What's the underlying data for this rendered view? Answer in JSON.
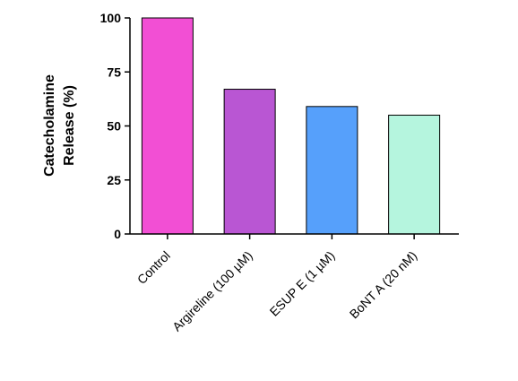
{
  "chart_data": {
    "type": "bar",
    "title": "",
    "xlabel": "",
    "ylabel": [
      "Catecholamine",
      "Release (%)"
    ],
    "ylim": [
      0,
      100
    ],
    "yticks": [
      0,
      25,
      50,
      75,
      100
    ],
    "grid": false,
    "categories": [
      "Control",
      "Argireline (100 µM)",
      "ESUP E (1 µM)",
      "BoNT A (20 nM)"
    ],
    "values": [
      100,
      67,
      59,
      55
    ],
    "colors": [
      "#f24fd4",
      "#b956d3",
      "#56a0fb",
      "#b5f5de"
    ]
  }
}
